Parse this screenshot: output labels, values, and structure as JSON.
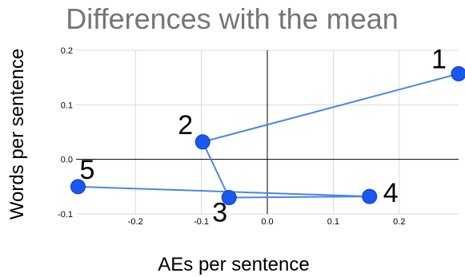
{
  "chart_data": {
    "type": "scatter",
    "title": "Differences with the mean",
    "xlabel": "AEs per sentence",
    "ylabel": "Words per sentence",
    "xlim": [
      -0.29,
      0.29
    ],
    "ylim": [
      -0.1,
      0.2
    ],
    "x_ticks": [
      -0.2,
      -0.1,
      0.0,
      0.1,
      0.2
    ],
    "x_tick_labels": [
      "-0.2",
      "-0.1",
      "0.0",
      "0.1",
      "0.2"
    ],
    "y_ticks": [
      -0.1,
      0.0,
      0.1,
      0.2
    ],
    "y_tick_labels": [
      "-0.1",
      "0.0",
      "0.1",
      "0.2"
    ],
    "grid": true,
    "connected": true,
    "colors": {
      "point": "#1a56f0",
      "line": "#4a86e8",
      "title": "#757575",
      "grid": "#d9d9d9",
      "axis": "#000000"
    },
    "points": [
      {
        "label": "1",
        "x": 0.29,
        "y": 0.157
      },
      {
        "label": "2",
        "x": -0.098,
        "y": 0.032
      },
      {
        "label": "3",
        "x": -0.058,
        "y": -0.07
      },
      {
        "label": "4",
        "x": 0.155,
        "y": -0.068
      },
      {
        "label": "5",
        "x": -0.287,
        "y": -0.05
      }
    ]
  }
}
